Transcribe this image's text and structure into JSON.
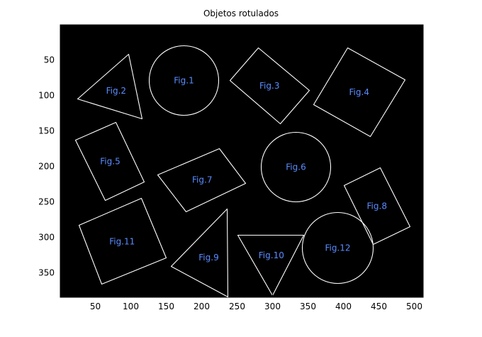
{
  "title": "Objetos rotulados",
  "axes": {
    "x_ticks": [
      "50",
      "100",
      "150",
      "200",
      "250",
      "300",
      "350",
      "400",
      "450",
      "500"
    ],
    "y_ticks": [
      "50",
      "100",
      "150",
      "200",
      "250",
      "300",
      "350"
    ],
    "xlim": [
      0.5,
      512.5
    ],
    "ylim": [
      0.5,
      384.5
    ]
  },
  "colors": {
    "background": "#000000",
    "outline": "#ffffff",
    "label": "#5a8cff"
  },
  "objects": [
    {
      "label": "Fig.1",
      "shape": "circle",
      "cx": 175,
      "cy": 79,
      "r": 49
    },
    {
      "label": "Fig.2",
      "shape": "triangle",
      "points": [
        [
          97,
          42
        ],
        [
          116,
          133
        ],
        [
          25,
          105
        ]
      ]
    },
    {
      "label": "Fig.3",
      "shape": "rectangle",
      "points": [
        [
          280,
          33
        ],
        [
          352,
          93
        ],
        [
          311,
          140
        ],
        [
          240,
          79
        ]
      ]
    },
    {
      "label": "Fig.4",
      "shape": "rectangle",
      "points": [
        [
          406,
          33
        ],
        [
          487,
          78
        ],
        [
          438,
          158
        ],
        [
          358,
          113
        ]
      ]
    },
    {
      "label": "Fig.5",
      "shape": "rectangle",
      "points": [
        [
          79,
          138
        ],
        [
          119,
          222
        ],
        [
          64,
          248
        ],
        [
          22,
          163
        ]
      ]
    },
    {
      "label": "Fig.6",
      "shape": "circle",
      "cx": 333,
      "cy": 201,
      "r": 49
    },
    {
      "label": "Fig.7",
      "shape": "rectangle",
      "points": [
        [
          225,
          175
        ],
        [
          262,
          224
        ],
        [
          178,
          264
        ],
        [
          138,
          212
        ]
      ]
    },
    {
      "label": "Fig.8",
      "shape": "rectangle",
      "points": [
        [
          452,
          202
        ],
        [
          494,
          285
        ],
        [
          442,
          310
        ],
        [
          401,
          227
        ]
      ]
    },
    {
      "label": "Fig.9",
      "shape": "triangle",
      "points": [
        [
          236,
          260
        ],
        [
          237,
          384
        ],
        [
          157,
          341
        ]
      ]
    },
    {
      "label": "Fig.10",
      "shape": "triangle",
      "points": [
        [
          251,
          297
        ],
        [
          344,
          297
        ],
        [
          300,
          382
        ]
      ]
    },
    {
      "label": "Fig.11",
      "shape": "rectangle",
      "points": [
        [
          115,
          245
        ],
        [
          150,
          329
        ],
        [
          59,
          366
        ],
        [
          27,
          283
        ]
      ]
    },
    {
      "label": "Fig.12",
      "shape": "circle",
      "cx": 392,
      "cy": 315,
      "r": 50
    }
  ]
}
